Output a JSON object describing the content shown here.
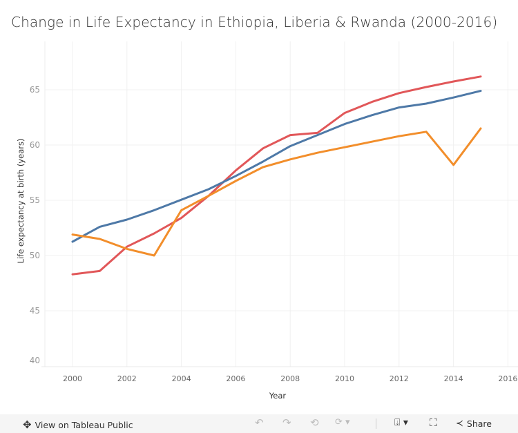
{
  "title": "Change in Life Expectancy in Ethiopia, Liberia & Rwanda (2000-2016)",
  "chart_data": {
    "type": "line",
    "title": "Change in Life Expectancy in Ethiopia, Liberia & Rwanda (2000-2016)",
    "xlabel": "Year",
    "ylabel": "Life expectancy at birth (years)",
    "xlim": [
      1999,
      2016.6
    ],
    "ylim": [
      40,
      67.5
    ],
    "xticks": [
      2000,
      2002,
      2004,
      2006,
      2008,
      2010,
      2012,
      2014,
      2016
    ],
    "yticks": [
      40,
      45,
      50,
      55,
      60,
      65
    ],
    "grid": true,
    "x": [
      2000,
      2001,
      2002,
      2003,
      2004,
      2005,
      2006,
      2007,
      2008,
      2009,
      2010,
      2011,
      2012,
      2013,
      2014,
      2015
    ],
    "series": [
      {
        "color": "#e15759",
        "values": [
          48.3,
          48.6,
          50.8,
          52.0,
          53.4,
          55.4,
          57.7,
          59.7,
          60.9,
          61.1,
          62.9,
          63.9,
          64.7,
          65.25,
          65.75,
          66.2
        ]
      },
      {
        "color": "#4e79a7",
        "values": [
          51.25,
          52.6,
          53.25,
          54.1,
          55.05,
          56.0,
          57.2,
          58.5,
          59.9,
          60.9,
          61.9,
          62.7,
          63.4,
          63.75,
          64.3,
          64.9
        ]
      },
      {
        "color": "#f28e2b",
        "values": [
          51.9,
          51.5,
          50.6,
          50.0,
          54.1,
          55.4,
          56.75,
          58.0,
          58.7,
          59.3,
          59.8,
          60.3,
          60.8,
          61.2,
          58.2,
          61.5
        ]
      }
    ]
  },
  "toolbar": {
    "view_label": "View on Tableau Public",
    "share_label": "Share",
    "icons": [
      "tableau-logo-icon",
      "undo-icon",
      "redo-icon",
      "revert-icon",
      "refresh-icon",
      "download-icon",
      "fullscreen-icon",
      "share-icon"
    ]
  }
}
